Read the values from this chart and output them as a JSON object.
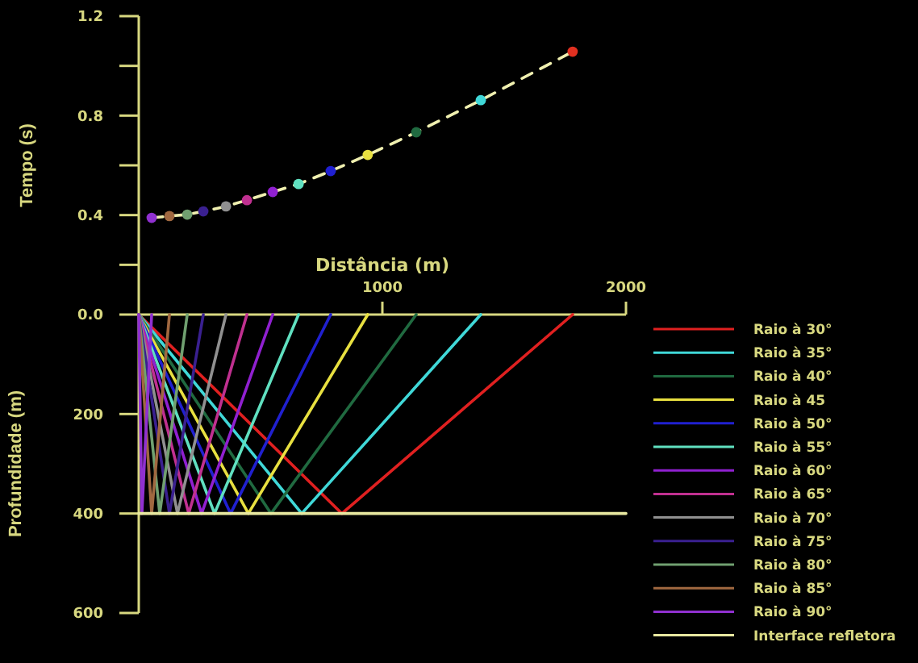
{
  "chart_data": [
    {
      "type": "line",
      "ylabel": "Tempo (s)",
      "xlim": [
        0,
        2000
      ],
      "ylim": [
        0,
        1.2
      ],
      "yticks": [
        {
          "value": 0.2,
          "label": null
        },
        0.4,
        {
          "value": 0.6,
          "label": null
        },
        0.8,
        {
          "value": 1.0,
          "label": null
        },
        1.2
      ],
      "tick_labels": "y",
      "grid": false,
      "legend": false,
      "marker": "circle",
      "line_style": "dashed",
      "series": [
        {
          "color": "#f0f0b0",
          "x": [
            53,
            126,
            199,
            265,
            358,
            444,
            550,
            656,
            788,
            940,
            1139,
            1404,
            1781
          ],
          "values": [
            0.389,
            0.396,
            0.402,
            0.415,
            0.435,
            0.46,
            0.493,
            0.525,
            0.577,
            0.642,
            0.733,
            0.862,
            1.057
          ],
          "colors": [
            "#9030d0",
            "#a06840",
            "#70a070",
            "#3a2090",
            "#909090",
            "#c03090",
            "#9020d0",
            "#60e0c0",
            "#2020d0",
            "#e8e040",
            "#206a40",
            "#40d8d8",
            "#e03020"
          ]
        }
      ]
    },
    {
      "type": "line",
      "xlabel": "Distância (m)",
      "ylabel": "Profundidade (m)",
      "xlim": [
        0,
        2000
      ],
      "xticks": [
        1000,
        2000
      ],
      "ylim": [
        600,
        0
      ],
      "yticks": [
        {
          "value": 0,
          "label": "0.0"
        },
        200,
        400,
        600
      ],
      "grid": false,
      "legend": "right",
      "marker": "none",
      "line_style": "solid",
      "series": [
        {
          "name": "Raio à 30°",
          "color": "#e02020",
          "x": [
            0,
            834,
            1781
          ],
          "values": [
            0,
            400,
            0
          ]
        },
        {
          "name": "Raio à 35°",
          "color": "#40d8d8",
          "x": [
            0,
            669,
            1404
          ],
          "values": [
            0,
            400,
            0
          ]
        },
        {
          "name": "Raio à 40°",
          "color": "#206a40",
          "x": [
            0,
            543,
            1139
          ],
          "values": [
            0,
            400,
            0
          ]
        },
        {
          "name": "Raio à 45",
          "color": "#e8e040",
          "x": [
            0,
            450,
            940
          ],
          "values": [
            0,
            400,
            0
          ]
        },
        {
          "name": "Raio à 50°",
          "color": "#2020d0",
          "x": [
            0,
            377,
            788
          ],
          "values": [
            0,
            400,
            0
          ]
        },
        {
          "name": "Raio à 55°",
          "color": "#60e0c0",
          "x": [
            0,
            311,
            656
          ],
          "values": [
            0,
            400,
            0
          ]
        },
        {
          "name": "Raio à 60°",
          "color": "#9020d0",
          "x": [
            0,
            258,
            550
          ],
          "values": [
            0,
            400,
            0
          ]
        },
        {
          "name": "Raio à 65°",
          "color": "#c03090",
          "x": [
            0,
            205,
            444
          ],
          "values": [
            0,
            400,
            0
          ]
        },
        {
          "name": "Raio à 70°",
          "color": "#909090",
          "x": [
            0,
            159,
            358
          ],
          "values": [
            0,
            400,
            0
          ]
        },
        {
          "name": "Raio à 75°",
          "color": "#3a2090",
          "x": [
            0,
            126,
            265
          ],
          "values": [
            0,
            400,
            0
          ]
        },
        {
          "name": "Raio à 80°",
          "color": "#70a070",
          "x": [
            0,
            86,
            199
          ],
          "values": [
            0,
            400,
            0
          ]
        },
        {
          "name": "Raio à 85°",
          "color": "#a06840",
          "x": [
            0,
            53,
            126
          ],
          "values": [
            0,
            400,
            0
          ]
        },
        {
          "name": "Raio à 90°",
          "color": "#9030d0",
          "x": [
            0,
            13,
            53
          ],
          "values": [
            0,
            400,
            0
          ]
        },
        {
          "name": "Interface refletora",
          "color": "#e8e8a0",
          "x": [
            0,
            2000
          ],
          "values": [
            400,
            400
          ]
        }
      ]
    }
  ]
}
